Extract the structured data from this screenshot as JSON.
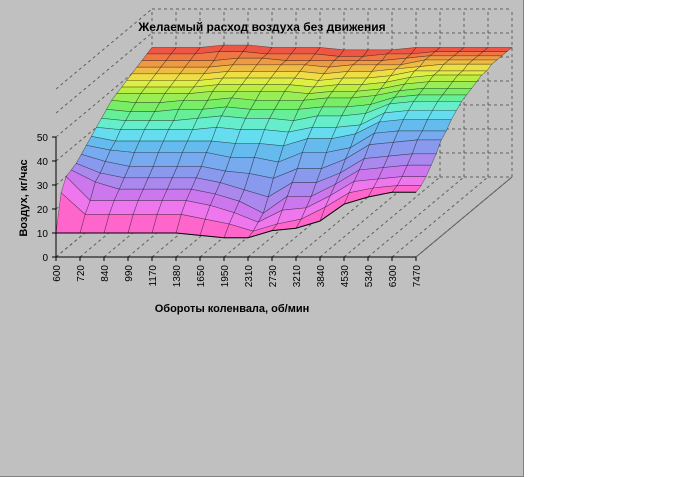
{
  "chart_data": {
    "type": "surface",
    "title": "Желаемый расход воздуха без движения",
    "xlabel": "Обороты коленвала, об/мин",
    "ylabel": "Воздух, кг/час",
    "categories": [
      "600",
      "720",
      "840",
      "990",
      "1170",
      "1380",
      "1650",
      "1950",
      "2310",
      "2730",
      "3210",
      "3840",
      "4530",
      "5340",
      "6300",
      "7470"
    ],
    "yticks": [
      "0",
      "10",
      "20",
      "30",
      "40",
      "50"
    ],
    "ylim": [
      0,
      50
    ],
    "grid": true,
    "series": [
      {
        "values": [
          10,
          10,
          10,
          10,
          10,
          10,
          9,
          8,
          8,
          11,
          12,
          15,
          22,
          25,
          27,
          27
        ]
      },
      {
        "values": [
          25,
          16,
          16,
          16,
          16,
          16,
          14,
          12,
          9,
          12,
          14,
          19,
          25,
          27,
          28,
          28
        ]
      },
      {
        "values": [
          30,
          20,
          20,
          20,
          20,
          20,
          18,
          15,
          11,
          16,
          17,
          22,
          28,
          29,
          30,
          30
        ]
      },
      {
        "values": [
          31,
          26,
          23,
          23,
          23,
          23,
          21,
          18,
          13,
          20,
          20,
          25,
          31,
          32,
          33,
          33
        ]
      },
      {
        "values": [
          32,
          28,
          26,
          26,
          26,
          26,
          24,
          21,
          18,
          24,
          24,
          28,
          34,
          35,
          36,
          36
        ]
      },
      {
        "values": [
          34,
          31,
          29,
          29,
          29,
          29,
          27,
          26,
          24,
          28,
          28,
          32,
          38,
          39,
          40,
          40
        ]
      },
      {
        "values": [
          36,
          34,
          33,
          33,
          33,
          33,
          31,
          31,
          29,
          33,
          33,
          35,
          41,
          42,
          42,
          42
        ]
      },
      {
        "values": [
          38,
          36,
          36,
          36,
          36,
          36,
          35,
          35,
          34,
          37,
          37,
          39,
          44,
          45,
          45,
          45
        ]
      },
      {
        "values": [
          40,
          39,
          39,
          39,
          39,
          40,
          39,
          39,
          38,
          40,
          40,
          41,
          46,
          47,
          47,
          47
        ]
      },
      {
        "values": [
          42,
          41,
          41,
          41,
          42,
          43,
          42,
          42,
          41,
          43,
          43,
          44,
          48,
          49,
          49,
          49
        ]
      },
      {
        "values": [
          44,
          43,
          43,
          44,
          44,
          45,
          44,
          44,
          44,
          45,
          45,
          46,
          49,
          50,
          50,
          50
        ]
      },
      {
        "values": [
          46,
          45,
          45,
          46,
          46,
          47,
          46,
          46,
          46,
          47,
          47,
          48,
          50,
          51,
          51,
          51
        ]
      },
      {
        "values": [
          47,
          47,
          47,
          47,
          48,
          48,
          48,
          48,
          47,
          48,
          48,
          49,
          51,
          52,
          52,
          52
        ]
      },
      {
        "values": [
          48,
          48,
          48,
          48,
          49,
          49,
          49,
          49,
          48,
          49,
          49,
          50,
          52,
          53,
          53,
          53
        ]
      },
      {
        "values": [
          49,
          49,
          49,
          49,
          50,
          50,
          50,
          50,
          49,
          50,
          50,
          51,
          53,
          53,
          53,
          53
        ]
      },
      {
        "values": [
          50,
          50,
          50,
          50,
          51,
          51,
          51,
          51,
          50,
          51,
          51,
          52,
          53,
          54,
          54,
          54
        ]
      },
      {
        "values": [
          51,
          51,
          51,
          51,
          52,
          52,
          52,
          52,
          51,
          52,
          52,
          52,
          54,
          54,
          54,
          54
        ]
      },
      {
        "values": [
          52,
          52,
          52,
          52,
          53,
          53,
          52,
          52,
          52,
          52,
          52,
          53,
          54,
          54,
          54,
          54
        ]
      },
      {
        "values": [
          53,
          53,
          53,
          54,
          54,
          53,
          53,
          53,
          52,
          52,
          53,
          53,
          54,
          54,
          54,
          54
        ]
      },
      {
        "values": [
          54,
          54,
          54,
          55,
          55,
          54,
          54,
          54,
          53,
          53,
          53,
          54,
          54,
          54,
          54,
          54
        ]
      }
    ],
    "colors": [
      "#ff66cc",
      "#ee77ee",
      "#cc77ee",
      "#aa88ee",
      "#8899ee",
      "#77aaee",
      "#66bbee",
      "#66ddee",
      "#66eecc",
      "#66ee99",
      "#77ee66",
      "#99ee55",
      "#bbee44",
      "#ddee44",
      "#eedd44",
      "#eebb44",
      "#ee9944",
      "#ee7744",
      "#ee5544",
      "#ee3333"
    ]
  }
}
